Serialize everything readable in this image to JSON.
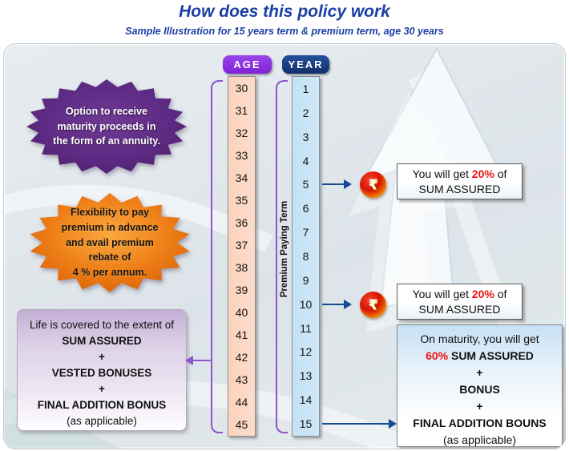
{
  "header": {
    "title": "How does this policy work",
    "subtitle": "Sample Illustration for 15 years term & premium term, age 30 years"
  },
  "columns": {
    "age": {
      "label": "AGE",
      "values": [
        "30",
        "31",
        "32",
        "33",
        "34",
        "35",
        "36",
        "37",
        "38",
        "39",
        "40",
        "41",
        "42",
        "43",
        "44",
        "45"
      ]
    },
    "year": {
      "label": "YEAR",
      "values": [
        "1",
        "2",
        "3",
        "4",
        "5",
        "6",
        "7",
        "8",
        "9",
        "10",
        "11",
        "12",
        "13",
        "14",
        "15"
      ]
    },
    "premium_term_label": "Premium Paying Term"
  },
  "callouts": {
    "annuity_star": {
      "text": "Option to receive\nmaturity proceeds in\nthe form of an annuity."
    },
    "rebate_star": {
      "text": "Flexibility to pay\npremium in advance\nand avail premium\nrebate of\n4 % per annum."
    },
    "payout_year5": {
      "prefix": "You will get ",
      "highlight": "20%",
      "suffix": " of",
      "line2": "SUM ASSURED"
    },
    "payout_year10": {
      "prefix": "You will get ",
      "highlight": "20%",
      "suffix": " of",
      "line2": "SUM ASSURED"
    },
    "maturity_box": {
      "line1": "On maturity, you will get",
      "highlight": "60%",
      "line2_rest": " SUM ASSURED",
      "line3": "+",
      "line4": "BONUS",
      "line5": "+",
      "line6": "FINAL ADDITION BOUNS",
      "line7": "(as applicable)"
    },
    "life_cover_box": {
      "line1": "Life is covered to the extent of",
      "line2": "SUM ASSURED",
      "line3": "+",
      "line4": "VESTED BONUSES",
      "line5": "+",
      "line6": "FINAL ADDITION BONUS",
      "line7": "(as applicable)"
    }
  },
  "icons": {
    "rupee_coin": "₹"
  },
  "colors": {
    "title_blue": "#1c3fa4",
    "badge_age_purple": "#8a2fe0",
    "badge_year_navy": "#16397d",
    "age_strip_peach": "#fbd8c3",
    "year_strip_blue": "#c9e5f7",
    "bracket_purple": "#8d55c9",
    "arrow_navy": "#164a94",
    "highlight_red": "#ee1111",
    "star_purple": "#5e2b84",
    "star_orange": "#ee7c12"
  }
}
